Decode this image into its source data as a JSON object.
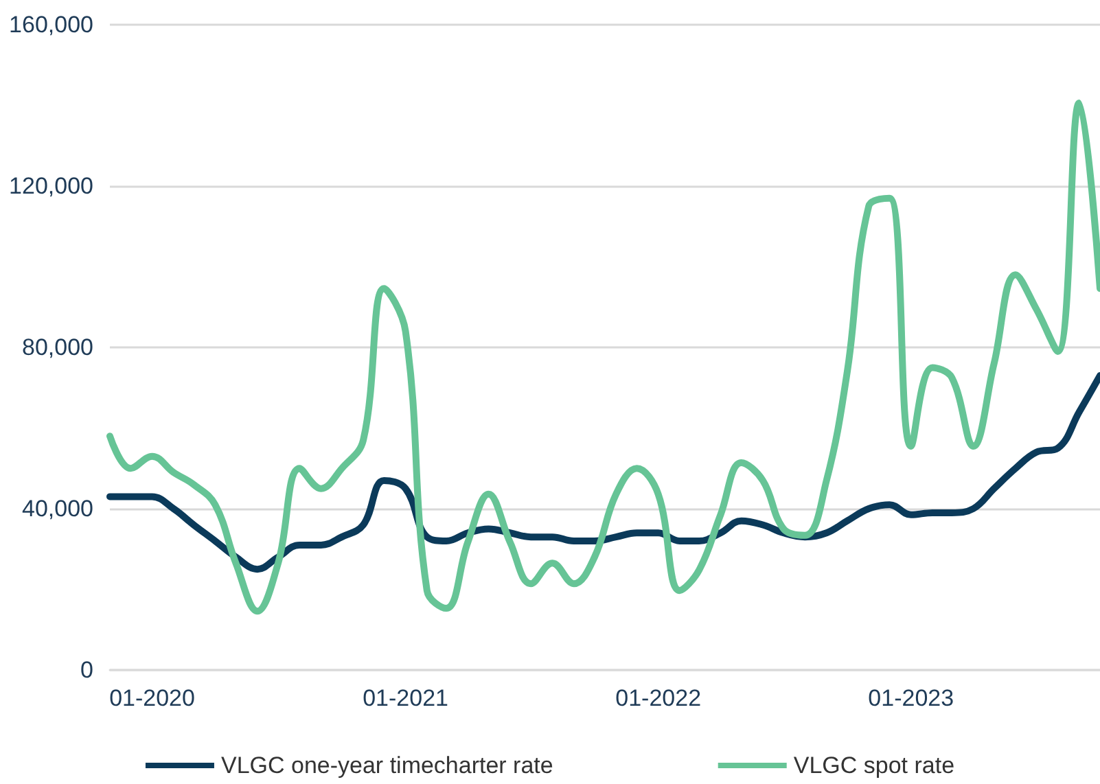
{
  "chart_data": {
    "type": "line",
    "x": [
      "2019-11",
      "2019-12",
      "2020-01",
      "2020-02",
      "2020-03",
      "2020-04",
      "2020-05",
      "2020-06",
      "2020-07",
      "2020-08",
      "2020-09",
      "2020-10",
      "2020-11",
      "2020-12",
      "2021-01",
      "2021-02",
      "2021-03",
      "2021-04",
      "2021-05",
      "2021-06",
      "2021-07",
      "2021-08",
      "2021-09",
      "2021-10",
      "2021-11",
      "2021-12",
      "2022-01",
      "2022-02",
      "2022-03",
      "2022-04",
      "2022-05",
      "2022-06",
      "2022-07",
      "2022-08",
      "2022-09",
      "2022-10",
      "2022-11",
      "2022-12",
      "2023-01",
      "2023-02",
      "2023-03",
      "2023-04",
      "2023-05",
      "2023-06",
      "2023-07",
      "2023-08",
      "2023-09",
      "2023-10"
    ],
    "series": [
      {
        "name": "VLGC one-year timecharter rate",
        "color": "#0b3a5a",
        "values": [
          43000,
          43000,
          43000,
          40000,
          36000,
          32000,
          28000,
          25000,
          28000,
          31000,
          31000,
          33000,
          36000,
          47000,
          45000,
          33000,
          32000,
          34000,
          35000,
          34000,
          33000,
          33000,
          32000,
          32000,
          33000,
          34000,
          34000,
          32000,
          32000,
          34000,
          37000,
          36000,
          34000,
          33000,
          34000,
          37000,
          40000,
          41000,
          38500,
          39000,
          39000,
          40000,
          45000,
          50000,
          54000,
          55000,
          64000,
          73000
        ]
      },
      {
        "name": "VLGC spot rate",
        "color": "#66c496",
        "values": [
          58000,
          50000,
          53000,
          49000,
          46000,
          41000,
          26500,
          14600,
          26500,
          50000,
          45000,
          50000,
          57000,
          94600,
          84000,
          19700,
          15300,
          31700,
          43600,
          31700,
          21400,
          26500,
          21400,
          28000,
          43600,
          50000,
          43600,
          19700,
          24800,
          38500,
          51400,
          47000,
          35000,
          33400,
          47000,
          74000,
          115000,
          117000,
          55500,
          75000,
          72500,
          55500,
          76000,
          98000,
          89500,
          79000,
          140600,
          94600
        ]
      }
    ],
    "xlim": [
      "2019-11",
      "2023-10"
    ],
    "xticks": [
      {
        "value": "2020-01",
        "label": "01-2020"
      },
      {
        "value": "2021-01",
        "label": "01-2021"
      },
      {
        "value": "2022-01",
        "label": "01-2022"
      },
      {
        "value": "2023-01",
        "label": "01-2023"
      }
    ],
    "ylim": [
      0,
      160000
    ],
    "yticks": [
      {
        "value": 0,
        "label": "0"
      },
      {
        "value": 40000,
        "label": "40,000"
      },
      {
        "value": 80000,
        "label": "80,000"
      },
      {
        "value": 120000,
        "label": "120,000"
      },
      {
        "value": 160000,
        "label": "160,000"
      }
    ],
    "grid": "y",
    "legend": "bottom",
    "marker": "none",
    "line_style": "solid"
  }
}
